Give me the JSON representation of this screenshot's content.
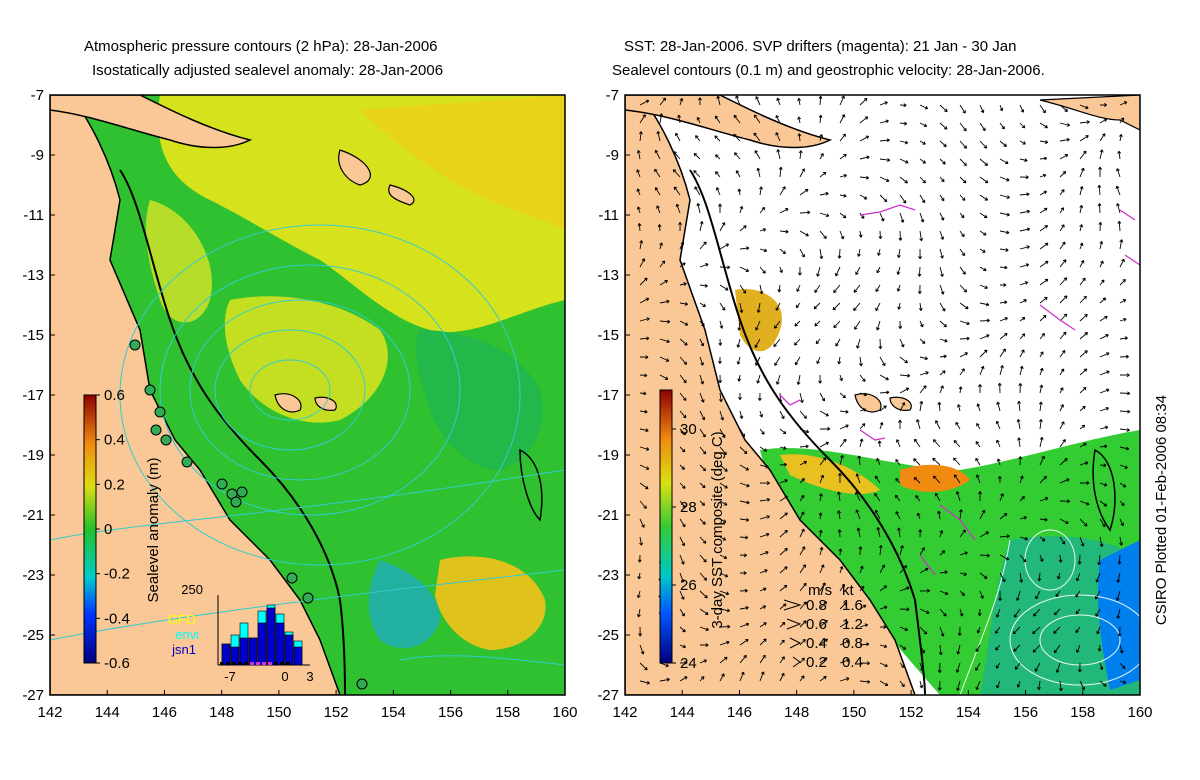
{
  "left_panel": {
    "title_line1": "Atmospheric pressure contours (2 hPa): 28-Jan-2006",
    "title_line2": "Isostatically adjusted sealevel anomaly: 28-Jan-2006",
    "y_ticks": [
      "-7",
      "-9",
      "-11",
      "-13",
      "-15",
      "-17",
      "-19",
      "-21",
      "-23",
      "-25",
      "-27"
    ],
    "x_ticks": [
      "142",
      "144",
      "146",
      "148",
      "150",
      "152",
      "154",
      "156",
      "158",
      "160"
    ],
    "colorbar": {
      "label": "Sealevel anomaly (m)",
      "ticks": [
        "0.6",
        "0.4",
        "0.2",
        "0",
        "-0.2",
        "-0.4",
        "-0.6"
      ],
      "range": [
        -0.6,
        0.6
      ]
    },
    "inset": {
      "count_label": "250",
      "legend": [
        {
          "name": "GFO",
          "color": "#ffff00"
        },
        {
          "name": "envi",
          "color": "#00ffff"
        },
        {
          "name": "jsn1",
          "color": "#0000cc"
        }
      ],
      "x_ticks": [
        "-7",
        "0",
        "3"
      ],
      "bars": [
        {
          "cyan": 0.35,
          "blue": 0.35
        },
        {
          "cyan": 0.5,
          "blue": 0.3
        },
        {
          "cyan": 0.7,
          "blue": 0.45
        },
        {
          "cyan": 0.45,
          "blue": 0.45
        },
        {
          "cyan": 0.9,
          "blue": 0.7
        },
        {
          "cyan": 1.0,
          "blue": 0.95
        },
        {
          "cyan": 0.85,
          "blue": 0.7
        },
        {
          "cyan": 0.55,
          "blue": 0.5
        },
        {
          "cyan": 0.4,
          "blue": 0.3
        }
      ]
    }
  },
  "right_panel": {
    "title_line1": "SST: 28-Jan-2006. SVP drifters (magenta): 21 Jan - 30 Jan",
    "title_line2": "Sealevel contours (0.1 m) and geostrophic velocity: 28-Jan-2006.",
    "y_ticks": [
      "-7",
      "-9",
      "-11",
      "-13",
      "-15",
      "-17",
      "-19",
      "-21",
      "-23",
      "-25",
      "-27"
    ],
    "x_ticks": [
      "142",
      "144",
      "146",
      "148",
      "150",
      "152",
      "154",
      "156",
      "158",
      "160"
    ],
    "colorbar": {
      "label": "3-day SST composite (deg C)",
      "ticks": [
        "30",
        "28",
        "26",
        "24"
      ],
      "range": [
        24,
        31
      ]
    },
    "velocity_key": {
      "header_ms": "m/s",
      "header_kt": "kt",
      "rows": [
        {
          "ms": "0.8",
          "kt": "1.6"
        },
        {
          "ms": "0.6",
          "kt": "1.2"
        },
        {
          "ms": "0.4",
          "kt": "0.8"
        },
        {
          "ms": "0.2",
          "kt": "0.4"
        }
      ]
    }
  },
  "credit": "CSIRO Plotted 01-Feb-2006 08:34",
  "colors": {
    "land": "#f9c896",
    "sla_green": "#2fc12f",
    "sla_yellow": "#d7e21b",
    "sst_green": "#33cc33",
    "drifter_magenta": "#cc33cc",
    "contour_cyan": "#33cccc"
  }
}
